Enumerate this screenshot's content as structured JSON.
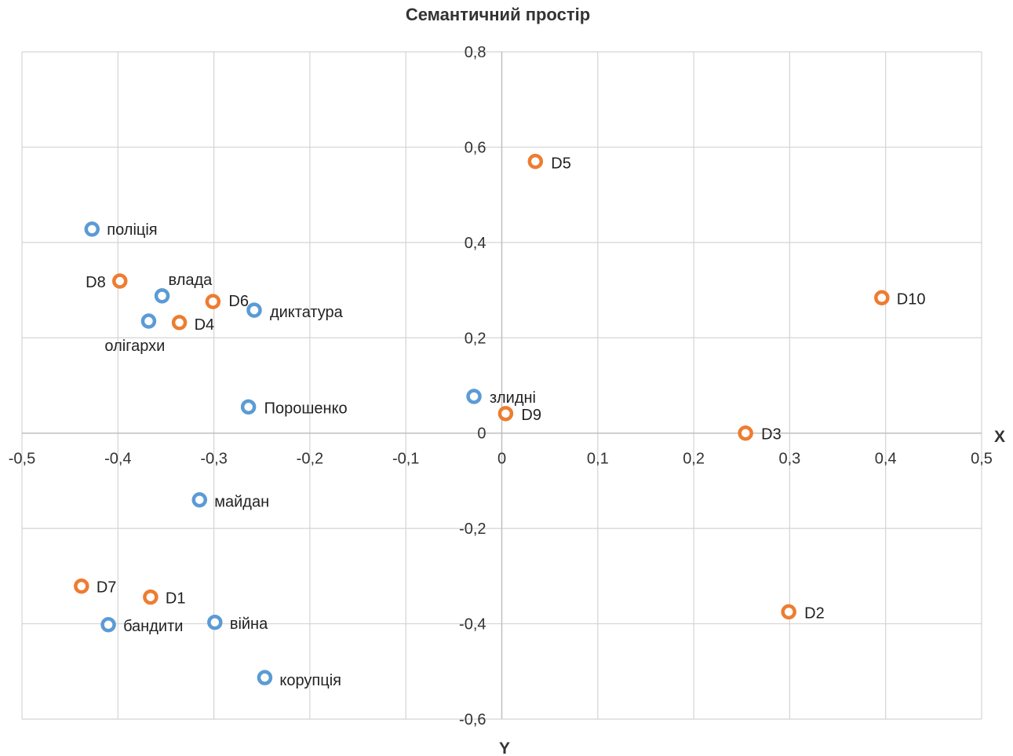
{
  "chart_data": {
    "type": "scatter",
    "title": "Семантичний простір",
    "xlabel": "X",
    "ylabel": "Y",
    "xlim": [
      -0.5,
      0.5
    ],
    "ylim": [
      -0.6,
      0.8
    ],
    "x_ticks": [
      "-0,5",
      "-0,4",
      "-0,3",
      "-0,2",
      "-0,1",
      "0",
      "0,1",
      "0,2",
      "0,3",
      "0,4",
      "0,5"
    ],
    "y_ticks": [
      "0,8",
      "0,6",
      "0,4",
      "0,2",
      "0",
      "-0,2",
      "-0,4",
      "-0,6"
    ],
    "grid": true,
    "legend": "none",
    "colors": {
      "words": "#5b9bd5",
      "documents": "#ed7d31"
    },
    "series": [
      {
        "color": "#5b9bd5",
        "points": [
          {
            "label": "поліція",
            "x": -0.427,
            "y": 0.428
          },
          {
            "label": "влада",
            "x": -0.354,
            "y": 0.288
          },
          {
            "label": "диктатура",
            "x": -0.258,
            "y": 0.258
          },
          {
            "label": "олігархи",
            "x": -0.368,
            "y": 0.235
          },
          {
            "label": "Порошенко",
            "x": -0.264,
            "y": 0.055
          },
          {
            "label": "злидні",
            "x": -0.029,
            "y": 0.077
          },
          {
            "label": "майдан",
            "x": -0.315,
            "y": -0.14
          },
          {
            "label": "бандити",
            "x": -0.41,
            "y": -0.402
          },
          {
            "label": "війна",
            "x": -0.299,
            "y": -0.397
          },
          {
            "label": "корупція",
            "x": -0.247,
            "y": -0.513
          }
        ]
      },
      {
        "color": "#ed7d31",
        "points": [
          {
            "label": "D5",
            "x": 0.035,
            "y": 0.57
          },
          {
            "label": "D8",
            "x": -0.398,
            "y": 0.319
          },
          {
            "label": "D6",
            "x": -0.301,
            "y": 0.276
          },
          {
            "label": "D4",
            "x": -0.336,
            "y": 0.232
          },
          {
            "label": "D10",
            "x": 0.396,
            "y": 0.284
          },
          {
            "label": "D9",
            "x": 0.004,
            "y": 0.041
          },
          {
            "label": "D3",
            "x": 0.254,
            "y": 0.0
          },
          {
            "label": "D7",
            "x": -0.438,
            "y": -0.321
          },
          {
            "label": "D1",
            "x": -0.366,
            "y": -0.344
          },
          {
            "label": "D2",
            "x": 0.299,
            "y": -0.375
          }
        ]
      }
    ]
  }
}
